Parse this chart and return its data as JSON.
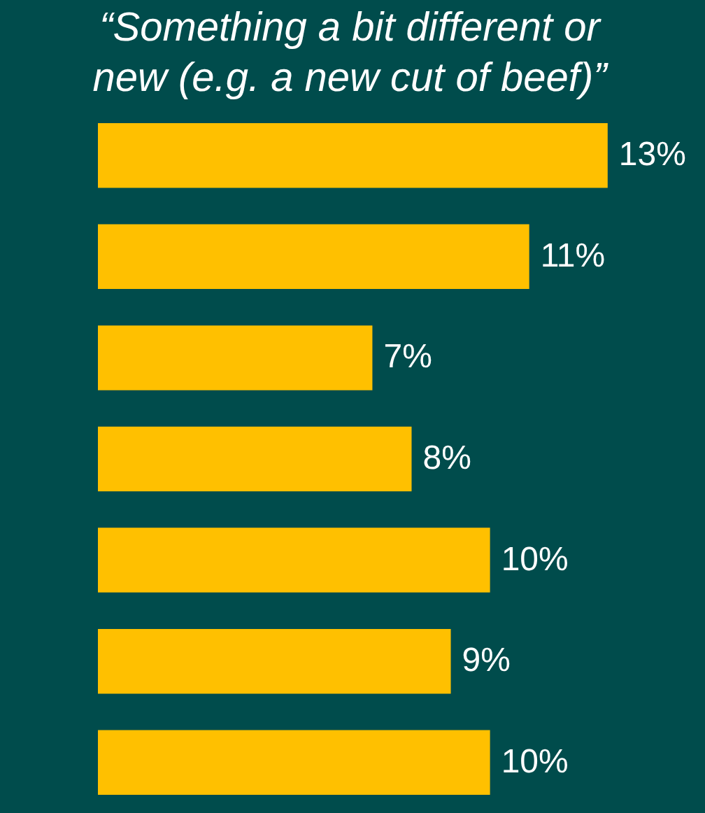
{
  "chart_data": {
    "type": "bar",
    "orientation": "horizontal",
    "title": "“Something a bit different or\nnew (e.g. a new cut of beef)”",
    "categories": [
      null,
      null,
      null,
      null,
      null,
      null,
      null
    ],
    "values": [
      13,
      11,
      7,
      8,
      10,
      9,
      10
    ],
    "value_labels": [
      "13%",
      "11%",
      "7%",
      "8%",
      "10%",
      "9%",
      "10%"
    ],
    "color": "#ffc000"
  }
}
